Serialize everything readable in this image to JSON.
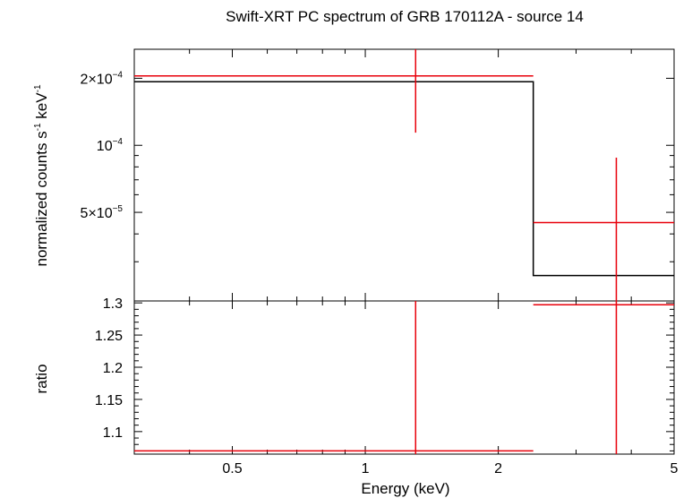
{
  "chart_data": [
    {
      "panel": "spectrum",
      "type": "scatter",
      "title": "Swift-XRT PC spectrum of GRB 170112A - source 14",
      "ylabel_main": "normalized counts s",
      "ylabel_sup1": "-1",
      "ylabel_mid": " keV",
      "ylabel_sup2": "-1",
      "xscale": "log",
      "yscale": "log",
      "xlim": [
        0.3,
        5
      ],
      "ylim": [
        2e-05,
        0.00027
      ],
      "xticks": [
        {
          "value": 0.5,
          "label": "0.5"
        },
        {
          "value": 1,
          "label": "1"
        },
        {
          "value": 2,
          "label": "2"
        },
        {
          "value": 5,
          "label": "5"
        }
      ],
      "yticks": [
        {
          "value": 0.0002,
          "mant": "2×10",
          "exp": "−4"
        },
        {
          "value": 0.0001,
          "mant": "10",
          "exp": "−4"
        },
        {
          "value": 5e-05,
          "mant": "5×10",
          "exp": "−5"
        }
      ],
      "series": [
        {
          "kind": "data",
          "color": "#e8000b",
          "points": [
            {
              "x": 1.3,
              "xlo": 0.3,
              "xhi": 2.4,
              "y": 0.000205,
              "ylo": 0.000114,
              "yhi": 0.00027
            },
            {
              "x": 3.7,
              "xlo": 2.4,
              "xhi": 5.0,
              "y": 4.5e-05,
              "ylo": 2e-05,
              "yhi": 8.8e-05
            }
          ]
        },
        {
          "kind": "model",
          "color": "#000000",
          "steps": [
            {
              "xlo": 0.3,
              "xhi": 2.4,
              "y": 0.000193
            },
            {
              "xlo": 2.4,
              "xhi": 5.0,
              "y": 2.6e-05
            }
          ]
        }
      ]
    },
    {
      "panel": "ratio",
      "type": "scatter",
      "xlabel": "Energy (keV)",
      "ylabel": "ratio",
      "xscale": "log",
      "xlim": [
        0.3,
        5
      ],
      "ylim": [
        1.065,
        1.303
      ],
      "yticks": [
        {
          "value": 1.3,
          "label": "1.3"
        },
        {
          "value": 1.25,
          "label": "1.25"
        },
        {
          "value": 1.2,
          "label": "1.2"
        },
        {
          "value": 1.15,
          "label": "1.15"
        },
        {
          "value": 1.1,
          "label": "1.1"
        }
      ],
      "series": [
        {
          "kind": "ratio",
          "color": "#e8000b",
          "points": [
            {
              "x": 1.3,
              "xlo": 0.3,
              "xhi": 2.4,
              "y": 1.07,
              "ylo": 1.065,
              "yhi": 1.303
            },
            {
              "x": 3.7,
              "xlo": 2.4,
              "xhi": 5.0,
              "y": 1.297,
              "ylo": 1.065,
              "yhi": 1.303
            }
          ]
        }
      ]
    }
  ]
}
